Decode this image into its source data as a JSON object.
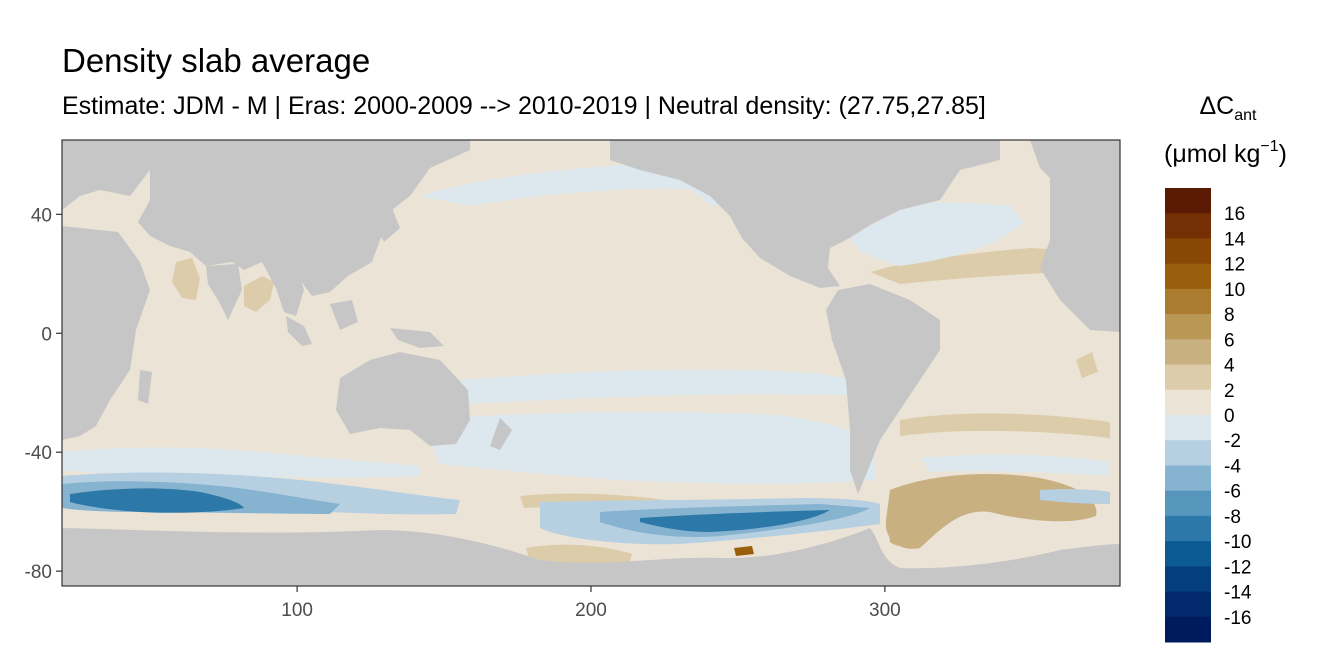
{
  "chart_data": {
    "type": "heatmap",
    "title": "Density slab average",
    "subtitle": "Estimate: JDM - M | Eras: 2000-2009 --> 2010-2019 | Neutral density: (27.75,27.85]",
    "xlim": [
      20,
      380
    ],
    "ylim": [
      -85,
      65
    ],
    "x_ticks": [
      100,
      200,
      300
    ],
    "y_ticks": [
      40,
      0,
      -40,
      -80
    ],
    "grid": false,
    "legend_position": "right",
    "legend": {
      "title_main": "ΔC",
      "title_sub": "ant",
      "title_unit_pre": "(μmol kg",
      "title_unit_sup": "−1",
      "title_unit_post": ")",
      "breaks": [
        16,
        14,
        12,
        10,
        8,
        6,
        4,
        2,
        0,
        -2,
        -4,
        -6,
        -8,
        -10,
        -12,
        -14,
        -16
      ],
      "colors": [
        "#5b1a03",
        "#743004",
        "#884705",
        "#9a5f0d",
        "#ab7c30",
        "#b99755",
        "#c9b080",
        "#dccca9",
        "#ebe4d6",
        "#dde8ee",
        "#b6d0e1",
        "#86b3cf",
        "#5695bc",
        "#2c78a8",
        "#0d5b94",
        "#063f80",
        "#032a6c",
        "#001a5e"
      ]
    },
    "colors": {
      "land": "#c6c6c6",
      "ocean_base": "#ebe4d6",
      "light_blue": "#dde8ee",
      "medium_blue": "#b6d0e1",
      "blue": "#86b3cf",
      "dark_blue": "#2c78a8",
      "light_brown": "#dccca9",
      "brown": "#c9b080",
      "dark_brown": "#9a5f0d"
    }
  }
}
